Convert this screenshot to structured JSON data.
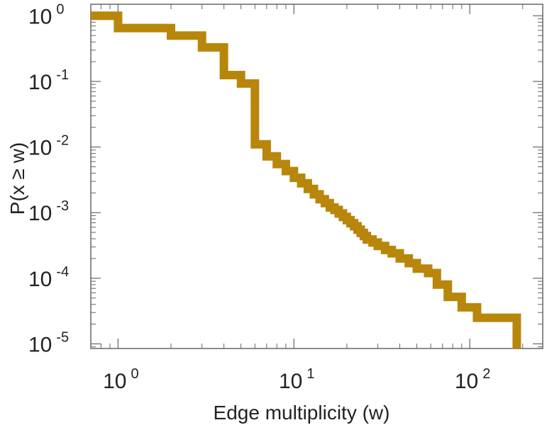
{
  "chart_data": {
    "type": "line",
    "style": "step",
    "title": "",
    "xlabel": "Edge multiplicity (w)",
    "ylabel": "P(x ≥ w)",
    "xscale": "log",
    "yscale": "log",
    "xlim": [
      0.7,
      260
    ],
    "ylim": [
      8.5e-06,
      1.5
    ],
    "grid": false,
    "legend": "none",
    "color": "#b8860b",
    "x_ticks": [
      {
        "value": 1,
        "base": "10",
        "exp": "0"
      },
      {
        "value": 10,
        "base": "10",
        "exp": "1"
      },
      {
        "value": 100,
        "base": "10",
        "exp": "2"
      }
    ],
    "y_ticks": [
      {
        "value": 1,
        "base": "10",
        "exp": "0"
      },
      {
        "value": 0.1,
        "base": "10",
        "exp": "-1"
      },
      {
        "value": 0.01,
        "base": "10",
        "exp": "-2"
      },
      {
        "value": 0.001,
        "base": "10",
        "exp": "-3"
      },
      {
        "value": 0.0001,
        "base": "10",
        "exp": "-4"
      },
      {
        "value": 1e-05,
        "base": "10",
        "exp": "-5"
      }
    ],
    "series": [
      {
        "name": "P(x ≥ w)",
        "points": [
          [
            0.7,
            1.0
          ],
          [
            1,
            1.0
          ],
          [
            1,
            0.65
          ],
          [
            2,
            0.65
          ],
          [
            2,
            0.5
          ],
          [
            3,
            0.5
          ],
          [
            3,
            0.33
          ],
          [
            4,
            0.33
          ],
          [
            4,
            0.125
          ],
          [
            5,
            0.125
          ],
          [
            5,
            0.093
          ],
          [
            6,
            0.093
          ],
          [
            6,
            0.011
          ],
          [
            7,
            0.011
          ],
          [
            7,
            0.0072
          ],
          [
            8,
            0.0072
          ],
          [
            8,
            0.0055
          ],
          [
            9,
            0.0055
          ],
          [
            9,
            0.0043
          ],
          [
            10,
            0.0043
          ],
          [
            10,
            0.0034
          ],
          [
            11,
            0.0034
          ],
          [
            11,
            0.0028
          ],
          [
            12,
            0.0028
          ],
          [
            12,
            0.0023
          ],
          [
            13,
            0.0023
          ],
          [
            13,
            0.0019
          ],
          [
            14,
            0.0019
          ],
          [
            14,
            0.0016
          ],
          [
            15,
            0.0016
          ],
          [
            15,
            0.0014
          ],
          [
            16,
            0.0014
          ],
          [
            16,
            0.0012
          ],
          [
            17,
            0.0012
          ],
          [
            17,
            0.0011
          ],
          [
            18,
            0.0011
          ],
          [
            18,
            0.00097
          ],
          [
            19,
            0.00097
          ],
          [
            19,
            0.00086
          ],
          [
            20,
            0.00086
          ],
          [
            20,
            0.00077
          ],
          [
            21,
            0.00077
          ],
          [
            21,
            0.00069
          ],
          [
            22,
            0.00069
          ],
          [
            22,
            0.00062
          ],
          [
            23,
            0.00062
          ],
          [
            23,
            0.00055
          ],
          [
            24,
            0.00055
          ],
          [
            24,
            0.00049
          ],
          [
            25,
            0.00049
          ],
          [
            25,
            0.00044
          ],
          [
            26,
            0.00044
          ],
          [
            26,
            0.00039
          ],
          [
            28,
            0.00039
          ],
          [
            28,
            0.00035
          ],
          [
            30,
            0.00035
          ],
          [
            30,
            0.00031
          ],
          [
            33,
            0.00031
          ],
          [
            33,
            0.00027
          ],
          [
            36,
            0.00027
          ],
          [
            36,
            0.00024
          ],
          [
            40,
            0.00024
          ],
          [
            40,
            0.0002
          ],
          [
            45,
            0.0002
          ],
          [
            45,
            0.00017
          ],
          [
            50,
            0.00017
          ],
          [
            50,
            0.00014
          ],
          [
            58,
            0.00014
          ],
          [
            58,
            0.00012
          ],
          [
            65,
            0.00012
          ],
          [
            65,
            8e-05
          ],
          [
            75,
            8e-05
          ],
          [
            75,
            5.2e-05
          ],
          [
            90,
            5.2e-05
          ],
          [
            90,
            3.6e-05
          ],
          [
            110,
            3.6e-05
          ],
          [
            110,
            2.5e-05
          ],
          [
            185,
            2.5e-05
          ],
          [
            185,
            8.5e-06
          ]
        ]
      }
    ]
  }
}
